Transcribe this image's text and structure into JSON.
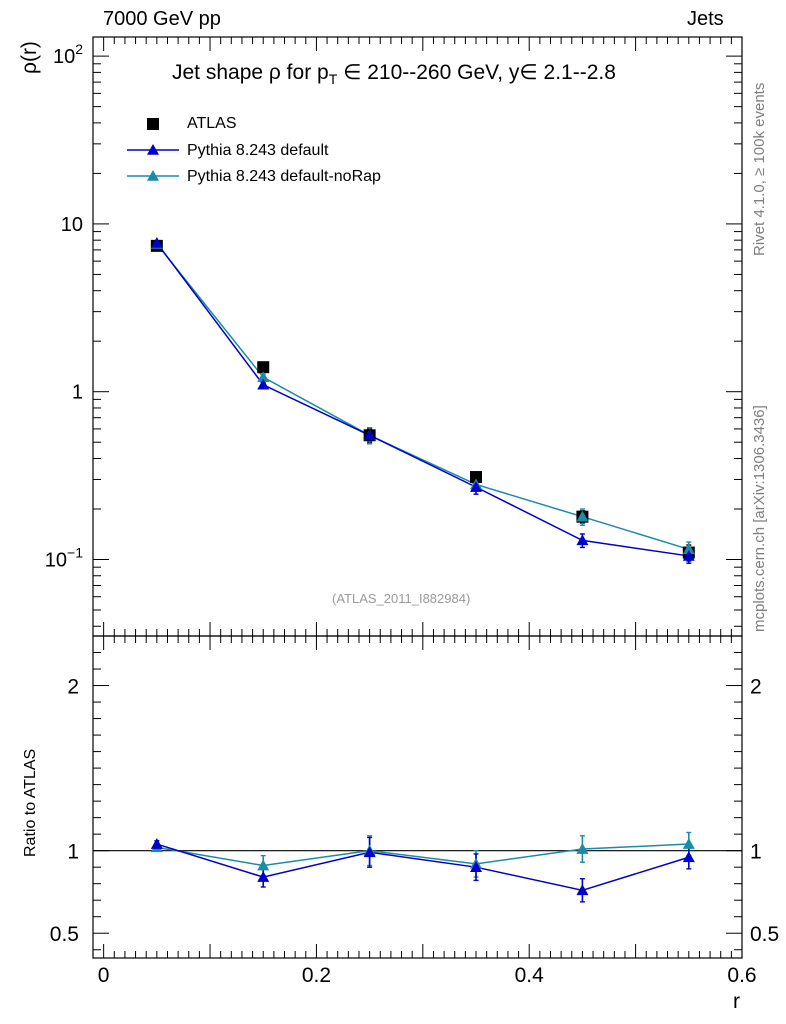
{
  "header": {
    "left": "7000 GeV pp",
    "right": "Jets"
  },
  "side_labels": {
    "rivet": "Rivet 4.1.0, ≥ 100k events",
    "mcplots": "mcplots.cern.ch [arXiv:1306.3436]"
  },
  "watermark": "(ATLAS_2011_I882984)",
  "title": {
    "prefix": "Jet shape ρ for p",
    "sub": "T",
    "suffix": " ∈ 210--260 GeV, y∈ 2.1--2.8"
  },
  "colors": {
    "data": "#000000",
    "default": "#0000cc",
    "noRap": "#1a8ca8"
  },
  "chart_data": [
    {
      "type": "line",
      "name": "main",
      "ylabel": "ρ(r)",
      "yscale": "log",
      "ylim": [
        0.035,
        130
      ],
      "xlim": [
        -0.01,
        0.6
      ],
      "yticks": [
        {
          "value": 0.1,
          "base": "10",
          "exp": "−1"
        },
        {
          "value": 1,
          "base": "1",
          "exp": ""
        },
        {
          "value": 10,
          "base": "10",
          "exp": ""
        },
        {
          "value": 100,
          "base": "10",
          "exp": "2"
        }
      ],
      "x": [
        0.05,
        0.15,
        0.25,
        0.35,
        0.45,
        0.55
      ],
      "series": [
        {
          "name": "ATLAS",
          "marker": "square",
          "values": [
            7.4,
            1.4,
            0.55,
            0.31,
            0.18,
            0.11
          ],
          "errors": [
            0.3,
            0.06,
            0.05,
            0.02,
            0.015,
            0.012
          ]
        },
        {
          "name": "Pythia 8.243 default",
          "marker": "triangle",
          "values": [
            7.7,
            1.1,
            0.55,
            0.27,
            0.13,
            0.105
          ],
          "errors": [
            0.15,
            0.04,
            0.06,
            0.025,
            0.012,
            0.01
          ]
        },
        {
          "name": "Pythia 8.243 default-noRap",
          "marker": "triangle",
          "values": [
            7.6,
            1.22,
            0.55,
            0.28,
            0.18,
            0.115
          ],
          "errors": [
            0.15,
            0.05,
            0.06,
            0.025,
            0.02,
            0.012
          ]
        }
      ]
    },
    {
      "type": "line",
      "name": "ratio",
      "ylabel": "Ratio to ATLAS",
      "xlabel": "r",
      "ylim": [
        0.35,
        2.3
      ],
      "xlim": [
        -0.01,
        0.6
      ],
      "xticks": [
        {
          "value": 0,
          "label": "0"
        },
        {
          "value": 0.2,
          "label": "0.2"
        },
        {
          "value": 0.4,
          "label": "0.4"
        },
        {
          "value": 0.6,
          "label": "0.6"
        }
      ],
      "yticks": [
        {
          "value": 0.5,
          "label": "0.5"
        },
        {
          "value": 1,
          "label": "1"
        },
        {
          "value": 2,
          "label": "2"
        }
      ],
      "x": [
        0.05,
        0.15,
        0.25,
        0.35,
        0.45,
        0.55
      ],
      "series": [
        {
          "name": "Pythia 8.243 default",
          "values": [
            1.04,
            0.84,
            0.99,
            0.9,
            0.76,
            0.96
          ],
          "errors": [
            0.02,
            0.06,
            0.09,
            0.08,
            0.07,
            0.07
          ]
        },
        {
          "name": "Pythia 8.243 default-noRap",
          "values": [
            1.02,
            0.91,
            1.0,
            0.92,
            1.01,
            1.04
          ],
          "errors": [
            0.02,
            0.06,
            0.09,
            0.08,
            0.08,
            0.07
          ]
        }
      ]
    }
  ]
}
